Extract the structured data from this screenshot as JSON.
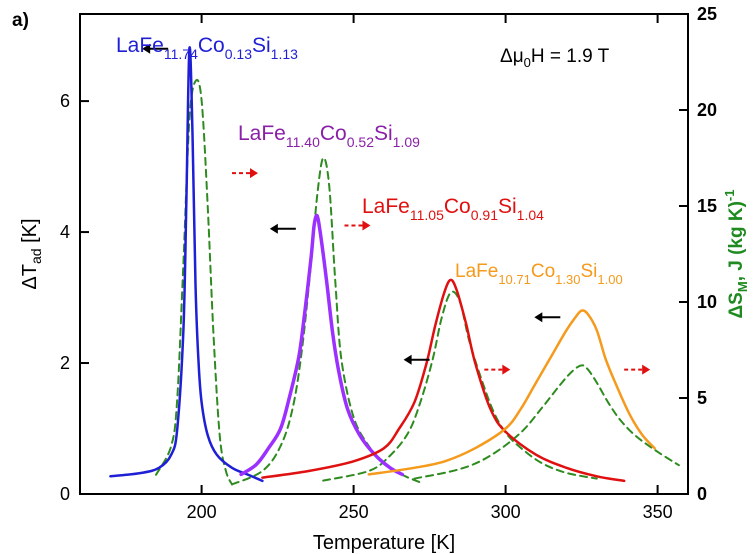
{
  "chart_data": {
    "type": "line",
    "panel_label": "a)",
    "field_annotation": "Δμ0H = 1.9 T",
    "xlabel": "Temperature [K]",
    "ylabel_left": "ΔTad [K]",
    "ylabel_right": "ΔSM, J (kg K)-1",
    "xlim": [
      160,
      360
    ],
    "ylim_left": [
      0,
      7.33
    ],
    "ylim_right": [
      0,
      25
    ],
    "x_ticks": [
      200,
      250,
      300,
      350
    ],
    "y_left_ticks": [
      0,
      2,
      4,
      6
    ],
    "y_right_ticks": [
      0,
      5,
      10,
      15,
      20,
      25
    ],
    "colors": {
      "blue": "#1f1fd6",
      "purple": "#8a1fa8",
      "violet": "#9b30ff",
      "red": "#e01010",
      "orange": "#f59a1c",
      "green_dashed": "#2e8b1f",
      "right_axis": "#1f8a1f",
      "black": "#000000"
    },
    "series": [
      {
        "composition": "LaFe11.74Co0.13Si1.13",
        "color_key": "blue",
        "axis": "left",
        "x": [
          170,
          180,
          186,
          190,
          192,
          194,
          195,
          196,
          197,
          198,
          199,
          200,
          202,
          205,
          210,
          215,
          220
        ],
        "y": [
          0.27,
          0.32,
          0.4,
          0.6,
          1.0,
          2.5,
          4.5,
          6.8,
          5.5,
          3.2,
          2.0,
          1.4,
          0.9,
          0.6,
          0.4,
          0.3,
          0.2
        ]
      },
      {
        "composition": "LaFe11.40Co0.52Si1.09",
        "color_key": "violet",
        "axis": "left",
        "x": [
          213,
          218,
          222,
          226,
          229,
          232,
          234,
          236,
          237,
          238,
          239,
          241,
          243,
          245,
          248,
          252,
          257,
          262,
          266
        ],
        "y": [
          0.3,
          0.45,
          0.7,
          1.0,
          1.5,
          2.1,
          2.8,
          3.6,
          4.1,
          4.25,
          4.0,
          3.3,
          2.5,
          1.9,
          1.3,
          0.9,
          0.6,
          0.4,
          0.3
        ]
      },
      {
        "composition": "LaFe11.05Co0.91Si1.04",
        "color_key": "red",
        "axis": "left",
        "x": [
          220,
          235,
          250,
          260,
          265,
          270,
          274,
          277,
          280,
          282,
          284,
          287,
          290,
          295,
          300,
          310,
          320,
          330,
          339
        ],
        "y": [
          0.25,
          0.35,
          0.5,
          0.7,
          1.0,
          1.4,
          2.0,
          2.6,
          3.1,
          3.27,
          3.1,
          2.6,
          2.0,
          1.3,
          0.95,
          0.6,
          0.4,
          0.27,
          0.2
        ]
      },
      {
        "composition": "LaFe10.71Co1.30Si1.00",
        "color_key": "orange",
        "axis": "left",
        "x": [
          255,
          270,
          280,
          290,
          300,
          305,
          310,
          315,
          320,
          323,
          325,
          327,
          330,
          333,
          337,
          341,
          345,
          349
        ],
        "y": [
          0.3,
          0.4,
          0.5,
          0.7,
          1.0,
          1.3,
          1.7,
          2.1,
          2.5,
          2.7,
          2.8,
          2.75,
          2.5,
          2.05,
          1.6,
          1.2,
          0.9,
          0.7
        ]
      },
      {
        "composition": "LaFe11.74Co0.13Si1.13",
        "color_key": "green_dashed",
        "axis": "right",
        "dashed": true,
        "x": [
          185,
          190,
          192,
          194,
          196,
          198,
          200,
          202,
          204,
          206,
          208,
          210
        ],
        "y": [
          1.0,
          2.5,
          5.0,
          12.0,
          19.5,
          21.5,
          20.5,
          15.0,
          8.0,
          3.0,
          1.2,
          0.5
        ]
      },
      {
        "composition": "LaFe11.40Co0.52Si1.09",
        "color_key": "green_dashed",
        "axis": "right",
        "dashed": true,
        "x": [
          210,
          220,
          226,
          230,
          233,
          236,
          238,
          240,
          242,
          244,
          246,
          250,
          255,
          260,
          266,
          272
        ],
        "y": [
          0.5,
          1.2,
          2.5,
          4.5,
          7.5,
          12.0,
          15.5,
          17.5,
          16.0,
          11.0,
          7.0,
          4.0,
          2.5,
          1.6,
          1.0,
          0.6
        ]
      },
      {
        "composition": "LaFe11.05Co0.91Si1.04",
        "color_key": "green_dashed",
        "axis": "right",
        "dashed": true,
        "x": [
          240,
          255,
          262,
          268,
          272,
          276,
          279,
          282,
          285,
          288,
          292,
          296,
          300,
          305,
          312,
          320,
          330
        ],
        "y": [
          0.7,
          1.2,
          2.0,
          3.2,
          4.8,
          7.0,
          9.2,
          10.5,
          10.0,
          8.0,
          6.0,
          4.3,
          3.2,
          2.4,
          1.6,
          1.1,
          0.8
        ]
      },
      {
        "composition": "LaFe10.71Co1.30Si1.00",
        "color_key": "green_dashed",
        "axis": "right",
        "dashed": true,
        "x": [
          270,
          285,
          295,
          305,
          312,
          318,
          322,
          325,
          327,
          330,
          334,
          338,
          343,
          350,
          357
        ],
        "y": [
          0.8,
          1.3,
          2.0,
          3.2,
          4.5,
          5.7,
          6.4,
          6.7,
          6.5,
          5.8,
          4.7,
          3.8,
          3.0,
          2.2,
          1.5
        ]
      }
    ],
    "labels": [
      {
        "base": "LaFe",
        "s1": "11.74",
        "mid": "Co",
        "s2": "0.13",
        "end": "Si",
        "s3": "1.13",
        "color_key": "blue"
      },
      {
        "base": "LaFe",
        "s1": "11.40",
        "mid": "Co",
        "s2": "0.52",
        "end": "Si",
        "s3": "1.09",
        "color_key": "purple"
      },
      {
        "base": "LaFe",
        "s1": "11.05",
        "mid": "Co",
        "s2": "0.91",
        "end": "Si",
        "s3": "1.04",
        "color_key": "red"
      },
      {
        "base": "LaFe",
        "s1": "10.71",
        "mid": "Co",
        "s2": "1.30",
        "end": "Si",
        "s3": "1.00",
        "color_key": "orange"
      }
    ],
    "axis_arrows": [
      {
        "direction": "left",
        "color_key": "black",
        "x": 189,
        "y": 6.8
      },
      {
        "direction": "right",
        "color_key": "red",
        "x": 210,
        "y": 4.9
      },
      {
        "direction": "left",
        "color_key": "black",
        "x": 231,
        "y": 4.05
      },
      {
        "direction": "right",
        "color_key": "red",
        "x": 247,
        "y": 4.1
      },
      {
        "direction": "left",
        "color_key": "black",
        "x": 275,
        "y": 2.05
      },
      {
        "direction": "right",
        "color_key": "red",
        "x": 293,
        "y": 1.9
      },
      {
        "direction": "left",
        "color_key": "black",
        "x": 318,
        "y": 2.7
      },
      {
        "direction": "right",
        "color_key": "red",
        "x": 339,
        "y": 1.9
      }
    ]
  }
}
